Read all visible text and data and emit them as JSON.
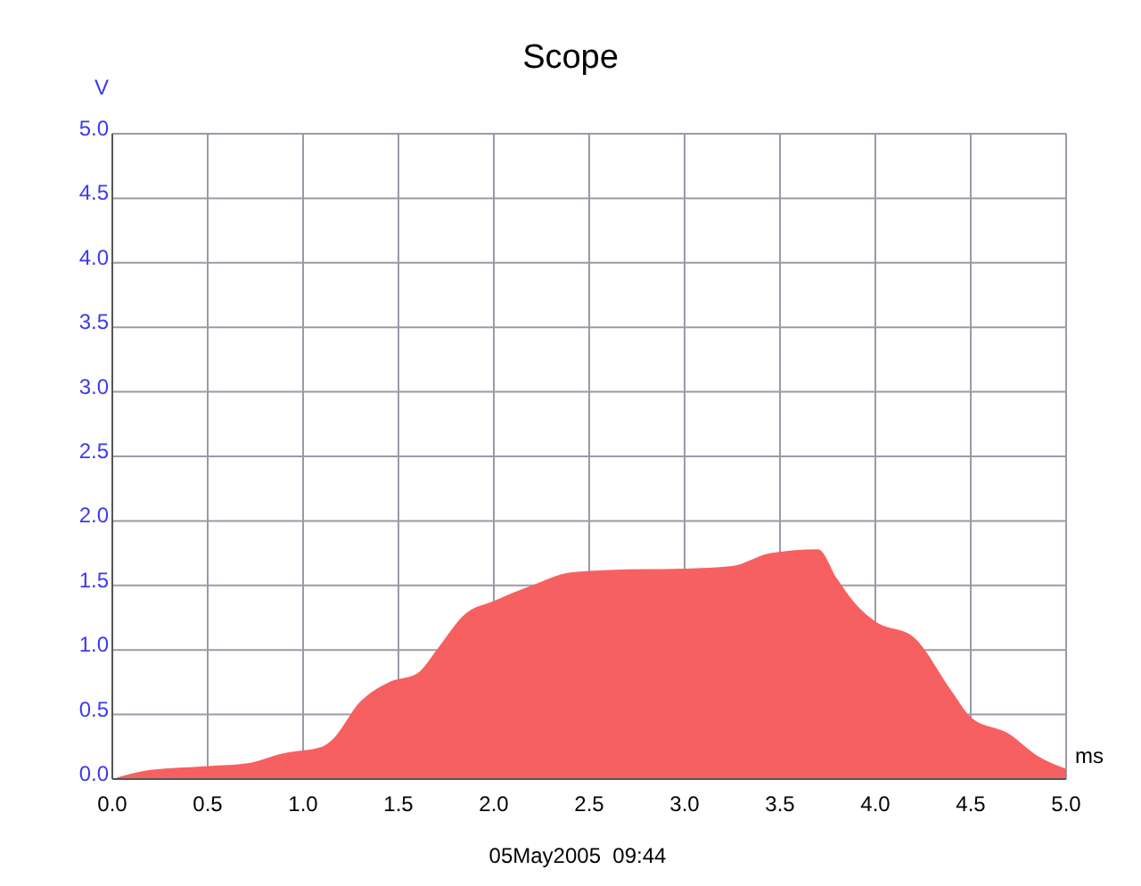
{
  "chart_data": {
    "type": "area",
    "title": "Scope",
    "xlabel": "ms",
    "ylabel": "V",
    "x": [
      0,
      0.2,
      0.5,
      0.7,
      0.9,
      1.1,
      1.15,
      1.3,
      1.45,
      1.6,
      1.7,
      1.85,
      2.0,
      2.2,
      2.4,
      2.6,
      3.0,
      3.25,
      3.45,
      3.7,
      3.8,
      3.9,
      4.0,
      4.2,
      4.4,
      4.5,
      4.7,
      4.85,
      5.0
    ],
    "series": [
      {
        "color": "#f76060",
        "values": [
          0,
          0.07,
          0.1,
          0.12,
          0.2,
          0.25,
          0.3,
          0.6,
          0.75,
          0.82,
          1.0,
          1.28,
          1.38,
          1.5,
          1.6,
          1.62,
          1.63,
          1.65,
          1.75,
          1.78,
          1.55,
          1.35,
          1.22,
          1.1,
          0.68,
          0.48,
          0.35,
          0.18,
          0.08
        ]
      }
    ],
    "xlim": [
      0,
      5
    ],
    "xticks": [
      {
        "value": 0,
        "label": "0.0"
      },
      {
        "value": 0.5,
        "label": "0.5"
      },
      {
        "value": 1,
        "label": "1.0"
      },
      {
        "value": 1.5,
        "label": "1.5"
      },
      {
        "value": 2,
        "label": "2.0"
      },
      {
        "value": 2.5,
        "label": "2.5"
      },
      {
        "value": 3,
        "label": "3.0"
      },
      {
        "value": 3.5,
        "label": "3.5"
      },
      {
        "value": 4,
        "label": "4.0"
      },
      {
        "value": 4.5,
        "label": "4.5"
      },
      {
        "value": 5,
        "label": "5.0"
      }
    ],
    "ylim": [
      0,
      5
    ],
    "yticks": [
      {
        "value": 0,
        "label": "0.0"
      },
      {
        "value": 0.5,
        "label": "0.5"
      },
      {
        "value": 1,
        "label": "1.0"
      },
      {
        "value": 1.5,
        "label": "1.5"
      },
      {
        "value": 2,
        "label": "2.0"
      },
      {
        "value": 2.5,
        "label": "2.5"
      },
      {
        "value": 3,
        "label": "3.0"
      },
      {
        "value": 3.5,
        "label": "3.5"
      },
      {
        "value": 4,
        "label": "4.0"
      },
      {
        "value": 4.5,
        "label": "4.5"
      },
      {
        "value": 5,
        "label": "5.0"
      }
    ],
    "grid": true,
    "annotations": [
      "05May2005  09:44"
    ]
  }
}
